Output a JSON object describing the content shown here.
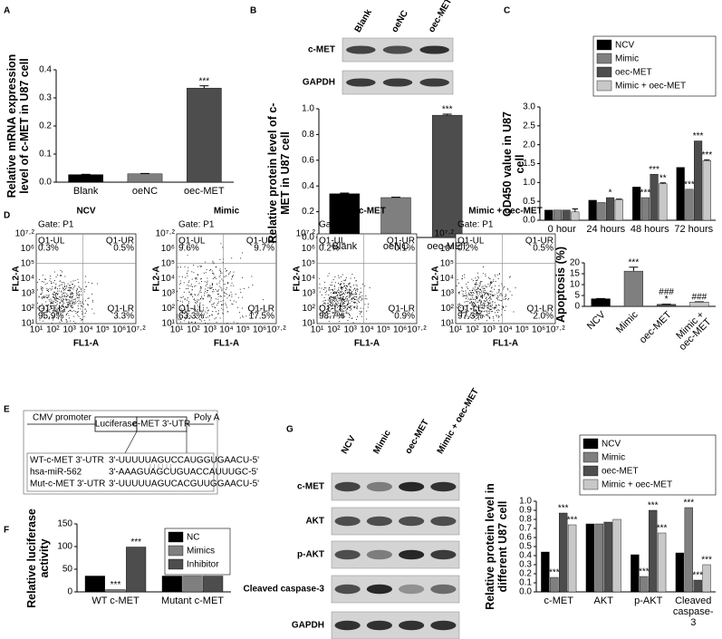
{
  "panels": [
    "A",
    "B",
    "C",
    "D",
    "E",
    "F",
    "G"
  ],
  "chart_data": [
    {
      "type": "bar",
      "y_label": "Relative mRNA expression level of c-MET in U87 cell",
      "categories": [
        "Blank",
        "oeNC",
        "oec-MET"
      ],
      "values": [
        0.027,
        0.03,
        0.335
      ],
      "errors": [
        0.001,
        0.001,
        0.008
      ],
      "annotations": [
        null,
        null,
        [
          "***"
        ]
      ],
      "colors": [
        "#000000",
        "#7f7f7f",
        "#4d4d4d"
      ],
      "ylim": [
        0,
        0.4
      ],
      "yticks": [
        {
          "value": 0,
          "label": "0.0"
        },
        0.1,
        0.2,
        0.3,
        0.4
      ]
    },
    {
      "type": "bar",
      "y_label": "Relative protein level of c-MET in U87 cell",
      "categories": [
        "Blank",
        "oeNC",
        "oec-MET"
      ],
      "values": [
        0.34,
        0.31,
        0.95
      ],
      "errors": [
        0.005,
        0.003,
        0.008
      ],
      "annotations": [
        null,
        null,
        [
          "***"
        ]
      ],
      "colors": [
        "#000000",
        "#7f7f7f",
        "#4d4d4d"
      ],
      "ylim": [
        0,
        1.0
      ],
      "yticks": [
        {
          "value": 0,
          "label": "0.0"
        },
        0.2,
        0.4,
        0.6,
        0.8,
        {
          "value": 1,
          "label": "1.0"
        }
      ]
    },
    {
      "type": "bar",
      "y_label": "OD450 value in U87 cell",
      "categories": [
        "0 hour",
        "24 hours",
        "48 hours",
        "72 hours"
      ],
      "series": [
        {
          "name": "NCV",
          "color": "#000000",
          "values": [
            0.27,
            0.53,
            0.88,
            1.4
          ],
          "annotations": [
            null,
            null,
            null,
            null
          ]
        },
        {
          "name": "Mimic",
          "color": "#7f7f7f",
          "values": [
            0.27,
            0.47,
            0.6,
            0.82
          ],
          "annotations": [
            null,
            null,
            [
              "***"
            ],
            [
              "***"
            ]
          ]
        },
        {
          "name": "oec-MET",
          "color": "#4d4d4d",
          "values": [
            0.27,
            0.6,
            1.22,
            2.1
          ],
          "annotations": [
            null,
            [
              "*"
            ],
            [
              "***"
            ],
            [
              "***"
            ]
          ]
        },
        {
          "name": "Mimic + oec-MET",
          "color": "#c8c8c8",
          "values": [
            0.22,
            0.55,
            0.97,
            1.58
          ],
          "errors": [
            0.08,
            0.01,
            0.02,
            0.02
          ],
          "annotations": [
            null,
            null,
            [
              "**"
            ],
            [
              "***"
            ]
          ]
        }
      ],
      "ylim": [
        0,
        3.0
      ],
      "yticks": [
        {
          "value": 0,
          "label": "0.0"
        },
        0.5,
        {
          "value": 1,
          "label": "1.0"
        },
        1.5,
        {
          "value": 2,
          "label": "2.0"
        },
        2.5,
        {
          "value": 3,
          "label": "3.0"
        }
      ]
    },
    {
      "type": "bar",
      "y_label": "Apoptosis (%)",
      "categories": [
        "NCV",
        "Mimic",
        "oec-MET",
        "Mimic + oec-MET"
      ],
      "values": [
        3.5,
        16.2,
        0.9,
        2.0
      ],
      "errors": [
        0.1,
        1.8,
        0.1,
        0.1
      ],
      "annotations": [
        null,
        [
          "***"
        ],
        [
          "###",
          "*"
        ],
        [
          "###"
        ]
      ],
      "colors": [
        "#000000",
        "#7f7f7f",
        "#4d4d4d",
        "#c8c8c8"
      ],
      "ylim": [
        0,
        20
      ],
      "yticks": [
        0,
        5,
        10,
        15,
        20
      ]
    },
    {
      "type": "bar",
      "y_label": "Relative luciferase activity",
      "categories": [
        "WT c-MET",
        "Mutant c-MET"
      ],
      "series": [
        {
          "name": "NC",
          "color": "#000000",
          "values": [
            35,
            35
          ],
          "annotations": [
            null,
            null
          ]
        },
        {
          "name": "Mimics",
          "color": "#7f7f7f",
          "values": [
            5,
            35
          ],
          "annotations": [
            [
              "***"
            ],
            null
          ]
        },
        {
          "name": "Inhibitor",
          "color": "#4d4d4d",
          "values": [
            99,
            35
          ],
          "annotations": [
            [
              "***"
            ],
            null
          ]
        }
      ],
      "ylim": [
        0,
        150
      ],
      "yticks": [
        0,
        50,
        100,
        150
      ]
    },
    {
      "type": "bar",
      "y_label": "Relative protein level in different U87 cell",
      "categories": [
        "c-MET",
        "AKT",
        "p-AKT",
        "Cleaved caspase-3"
      ],
      "series": [
        {
          "name": "NCV",
          "color": "#000000",
          "values": [
            0.44,
            0.75,
            0.41,
            0.43
          ],
          "annotations": [
            null,
            null,
            null,
            null
          ]
        },
        {
          "name": "Mimic",
          "color": "#7f7f7f",
          "values": [
            0.16,
            0.75,
            0.17,
            0.93
          ],
          "annotations": [
            [
              "***"
            ],
            null,
            [
              "***"
            ],
            [
              "***"
            ]
          ]
        },
        {
          "name": "oec-MET",
          "color": "#4d4d4d",
          "values": [
            0.87,
            0.77,
            0.9,
            0.13
          ],
          "annotations": [
            [
              "***"
            ],
            null,
            [
              "***"
            ],
            [
              "***"
            ]
          ]
        },
        {
          "name": "Mimic + oec-MET",
          "color": "#c8c8c8",
          "values": [
            0.74,
            0.8,
            0.65,
            0.3
          ],
          "annotations": [
            [
              "***"
            ],
            null,
            [
              "***"
            ],
            [
              "***"
            ]
          ]
        }
      ],
      "ylim": [
        0,
        1.0
      ],
      "yticks": [
        {
          "value": 0,
          "label": "0.0"
        },
        0.1,
        0.2,
        0.3,
        0.4,
        0.5,
        0.6,
        0.7,
        0.8,
        0.9,
        {
          "value": 1,
          "label": "1.0"
        }
      ]
    }
  ],
  "blot_b": {
    "lanes": [
      "Blank",
      "oeNC",
      "oec-MET"
    ],
    "rows": [
      "c-MET",
      "GAPDH"
    ]
  },
  "blot_g": {
    "lanes": [
      "NCV",
      "Mimic",
      "oec-MET",
      "Mimic + oec-MET"
    ],
    "rows": [
      "c-MET",
      "AKT",
      "p-AKT",
      "Cleaved caspase-3",
      "GAPDH"
    ]
  },
  "flow_d": {
    "x_label": "FL1-A",
    "y_label": "FL2-A",
    "axis_ticks": [
      "10¹",
      "10²",
      "10³",
      "10⁴",
      "10⁵",
      "10⁶",
      "10⁷·²"
    ],
    "plots": [
      {
        "title": "NCV",
        "gate": "Gate: P1",
        "quadrants": [
          {
            "name": "Q1-UL",
            "value": "0.3%"
          },
          {
            "name": "Q1-UR",
            "value": "0.5%"
          },
          {
            "name": "Q1-LL",
            "value": "95.9%"
          },
          {
            "name": "Q1-LR",
            "value": "3.3%"
          }
        ]
      },
      {
        "title": "Mimic",
        "gate": "Gate: P1",
        "quadrants": [
          {
            "name": "Q1-UL",
            "value": "9.6%"
          },
          {
            "name": "Q1-UR",
            "value": "9.7%"
          },
          {
            "name": "Q1-LL",
            "value": "63.3%"
          },
          {
            "name": "Q1-LR",
            "value": "17.5%"
          }
        ]
      },
      {
        "title": "oec-MET",
        "gate": "Gate: P1",
        "quadrants": [
          {
            "name": "Q1-UL",
            "value": "0.2%"
          },
          {
            "name": "Q1-UR",
            "value": "0.1%"
          },
          {
            "name": "Q1-LL",
            "value": "98.7%"
          },
          {
            "name": "Q1-LR",
            "value": "0.9%"
          }
        ]
      },
      {
        "title": "Mimic + oec-MET",
        "gate": "Gate: P1",
        "quadrants": [
          {
            "name": "Q1-UL",
            "value": "0.2%"
          },
          {
            "name": "Q1-UR",
            "value": "0.5%"
          },
          {
            "name": "Q1-LL",
            "value": "97.3%"
          },
          {
            "name": "Q1-LR",
            "value": "2.0%"
          }
        ]
      }
    ]
  },
  "diagram_e": {
    "promoter": "CMV promoter",
    "luciferase": "Luciferase",
    "utr": "c-MET 3'-UTR",
    "polya": "Poly A",
    "sequences": [
      {
        "label": "WT-c-MET 3'-UTR",
        "seq": "3'-UUUUUAGUCCAUGGUGAACU-5'"
      },
      {
        "label": "hsa-miR-562",
        "seq": "3'-AAAGUAGCUGUACCAUUUGC-5'"
      },
      {
        "label": "Mut-c-MET 3'-UTR",
        "seq": "3'-UUUUUAGUCACGUUGGAACU-5'"
      }
    ]
  }
}
